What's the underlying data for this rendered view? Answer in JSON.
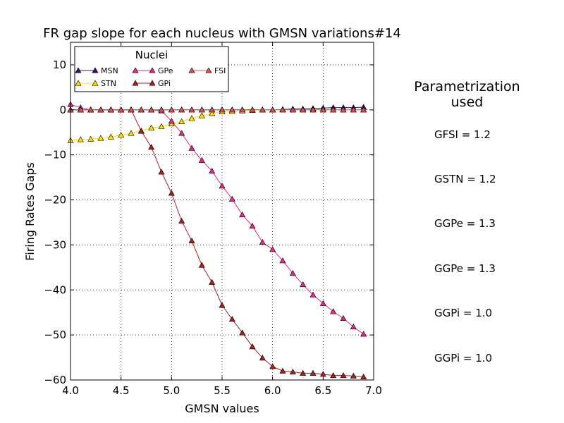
{
  "chart_data": {
    "type": "line",
    "title": "FR gap slope for each nucleus with GMSN variations#14",
    "xlabel": "GMSN values",
    "ylabel": "Firing Rates Gaps",
    "xlim": [
      4.0,
      7.0
    ],
    "ylim": [
      -60,
      15
    ],
    "xticks": [
      "4.0",
      "4.5",
      "5.0",
      "5.5",
      "6.0",
      "6.5",
      "7.0"
    ],
    "yticks": [
      "10",
      "0",
      "−10",
      "−20",
      "−30",
      "−40",
      "−50",
      "−60"
    ],
    "grid": true,
    "legend": {
      "title": "Nuclei",
      "position": "top-left"
    },
    "x": [
      4.0,
      4.1,
      4.2,
      4.3,
      4.4,
      4.5,
      4.6,
      4.7,
      4.8,
      4.9,
      5.0,
      5.1,
      5.2,
      5.3,
      5.4,
      5.5,
      5.6,
      5.7,
      5.8,
      5.9,
      6.0,
      6.1,
      6.2,
      6.3,
      6.4,
      6.5,
      6.6,
      6.7,
      6.8,
      6.9
    ],
    "series": [
      {
        "name": "MSN",
        "color": "#3b0f70",
        "values": [
          0,
          0,
          0,
          0,
          0,
          0,
          0,
          0,
          0,
          0,
          0,
          0,
          0,
          0,
          0,
          0,
          0,
          0,
          0,
          0,
          0,
          0.1,
          0.2,
          0.2,
          0.3,
          0.4,
          0.5,
          0.5,
          0.5,
          0.6
        ]
      },
      {
        "name": "STN",
        "color": "#ffdd00",
        "values": [
          -6.8,
          -6.6,
          -6.5,
          -6.3,
          -6.0,
          -5.6,
          -5.2,
          -4.7,
          -4.0,
          -3.7,
          -3.1,
          -2.6,
          -1.9,
          -1.3,
          -0.8,
          -0.4,
          -0.3,
          -0.2,
          -0.1,
          0,
          0,
          0,
          0,
          0,
          0,
          0,
          0,
          0,
          0,
          0
        ]
      },
      {
        "name": "GPe",
        "color": "#e7298a",
        "values": [
          1.2,
          0.5,
          0,
          0,
          0,
          0,
          0,
          0,
          0,
          -0.2,
          -2.5,
          -5.2,
          -8.5,
          -11.2,
          -13.6,
          -16.9,
          -19.8,
          -23.3,
          -25.8,
          -29.4,
          -31.0,
          -33.5,
          -36.3,
          -38.8,
          -41.1,
          -43.0,
          -44.8,
          -46.3,
          -48.2,
          -49.8
        ]
      },
      {
        "name": "GPi",
        "color": "#a52222",
        "values": [
          0,
          0,
          0,
          0,
          0,
          0,
          0,
          -4.7,
          -8.3,
          -13.8,
          -18.5,
          -24.7,
          -29.1,
          -34.5,
          -38.3,
          -43.4,
          -46.5,
          -49.5,
          -52.6,
          -55.1,
          -57.0,
          -58.0,
          -58.2,
          -58.5,
          -58.5,
          -58.7,
          -59.0,
          -59.0,
          -59.1,
          -59.3
        ]
      },
      {
        "name": "FSI",
        "color": "#d9534f",
        "values": [
          0,
          0,
          0,
          0,
          0,
          0,
          0,
          0,
          0,
          0,
          0,
          0,
          0,
          0,
          0,
          0,
          0,
          0,
          0,
          0,
          0,
          0,
          0,
          0,
          0,
          0,
          0,
          0,
          0,
          0
        ]
      }
    ]
  },
  "parametrization": {
    "title_line1": "Parametrization",
    "title_line2": "used",
    "items": [
      "GFSI = 1.2",
      "GSTN = 1.2",
      "GGPe = 1.3",
      "GGPe = 1.3",
      "GGPi = 1.0",
      "GGPi = 1.0"
    ]
  }
}
